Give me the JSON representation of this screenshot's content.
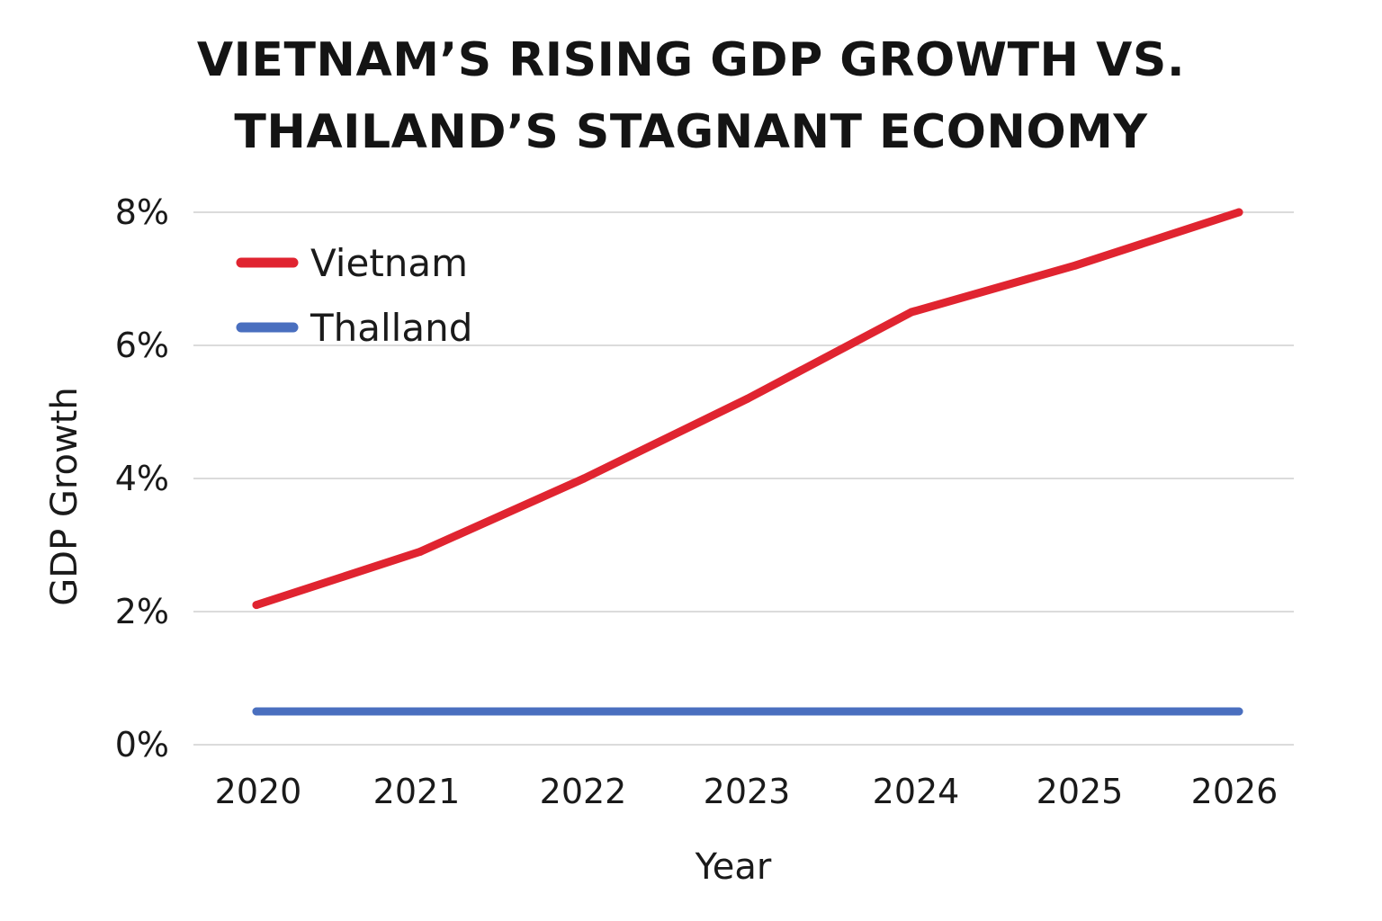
{
  "chart_data": {
    "type": "line",
    "title_lines": [
      "VIETNAM’S RISING GDP GROWTH VS.",
      "THAILAND’S STAGNANT ECONOMY"
    ],
    "xlabel": "Year",
    "ylabel": "GDP Growth",
    "categories": [
      "2020",
      "2021",
      "2022",
      "2023",
      "2024",
      "2025",
      "2026"
    ],
    "y_ticks": [
      0,
      2,
      4,
      6,
      8
    ],
    "y_tick_labels": [
      "0%",
      "2%",
      "4%",
      "6%",
      "8%"
    ],
    "ylim": [
      0,
      8
    ],
    "grid": true,
    "legend_position": "top-left",
    "series": [
      {
        "name": "Vietnam",
        "color": "#e02430",
        "values": [
          2.1,
          2.9,
          4.0,
          5.2,
          6.5,
          7.2,
          8.0
        ]
      },
      {
        "name": "Thalland",
        "color": "#4a6fbf",
        "values": [
          0.5,
          0.5,
          0.5,
          0.5,
          0.5,
          0.5,
          0.5
        ]
      }
    ]
  }
}
